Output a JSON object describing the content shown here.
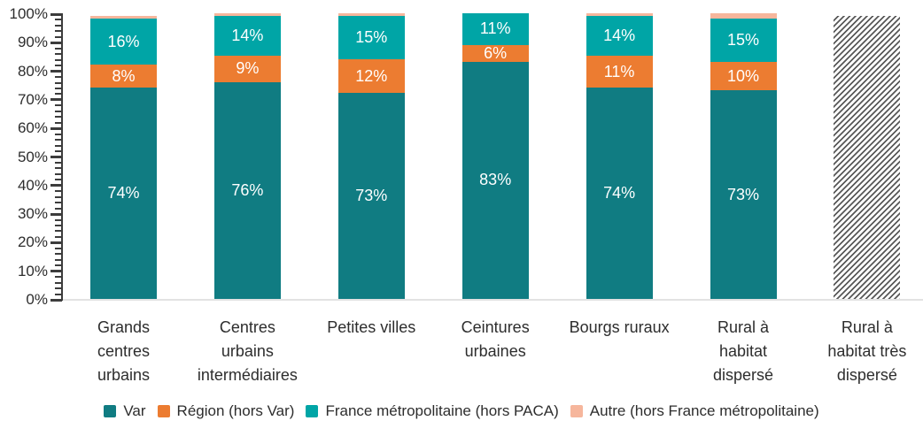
{
  "chart_data": {
    "type": "bar",
    "variant": "stacked-percent",
    "title": "",
    "xlabel": "",
    "ylabel": "",
    "grid": false,
    "legend_position": "bottom",
    "y_axis": {
      "min": 0,
      "max": 100,
      "major_step": 10,
      "minor_step": 2,
      "tick_labels": [
        "0%",
        "10%",
        "20%",
        "30%",
        "40%",
        "50%",
        "60%",
        "70%",
        "80%",
        "90%",
        "100%"
      ]
    },
    "categories": [
      {
        "name": "Grands centres urbains",
        "label_lines": [
          "Grands",
          "centres",
          "urbains"
        ],
        "no_data": false
      },
      {
        "name": "Centres urbains intermédiaires",
        "label_lines": [
          "Centres",
          "urbains",
          "intermédiaires"
        ],
        "no_data": false
      },
      {
        "name": "Petites villes",
        "label_lines": [
          "Petites villes"
        ],
        "no_data": false
      },
      {
        "name": "Ceintures urbaines",
        "label_lines": [
          "Ceintures",
          "urbaines"
        ],
        "no_data": false
      },
      {
        "name": "Bourgs ruraux",
        "label_lines": [
          "Bourgs ruraux"
        ],
        "no_data": false
      },
      {
        "name": "Rural à habitat dispersé",
        "label_lines": [
          "Rural à",
          "habitat",
          "dispersé"
        ],
        "no_data": false
      },
      {
        "name": "Rural à habitat très dispersé",
        "label_lines": [
          "Rural à",
          "habitat très",
          "dispersé"
        ],
        "no_data": true
      }
    ],
    "series": [
      {
        "name": "Var",
        "color": "#107c82",
        "show_labels": true,
        "label_format": "{v}%",
        "values": [
          74,
          76,
          73,
          83,
          74,
          73,
          null
        ]
      },
      {
        "name": "Région (hors Var)",
        "color": "#ec7c31",
        "show_labels": true,
        "label_format": "{v}%",
        "values": [
          8,
          9,
          12,
          6,
          11,
          10,
          null
        ]
      },
      {
        "name": "France métropolitaine (hors PACA)",
        "color": "#00a5a6",
        "show_labels": true,
        "label_format": "{v}%",
        "values": [
          16,
          14,
          15,
          11,
          14,
          15,
          null
        ]
      },
      {
        "name": "Autre (hors France métropolitaine)",
        "color": "#f6b69c",
        "show_labels": false,
        "label_format": "{v}%",
        "values": [
          1,
          1,
          1,
          0,
          1,
          2,
          null
        ]
      }
    ],
    "no_data_bar": {
      "category": "Rural à habitat très dispersé",
      "pattern": "diagonal-hatch",
      "hatch_color": "#585858",
      "approx_height_pct": 99
    }
  }
}
